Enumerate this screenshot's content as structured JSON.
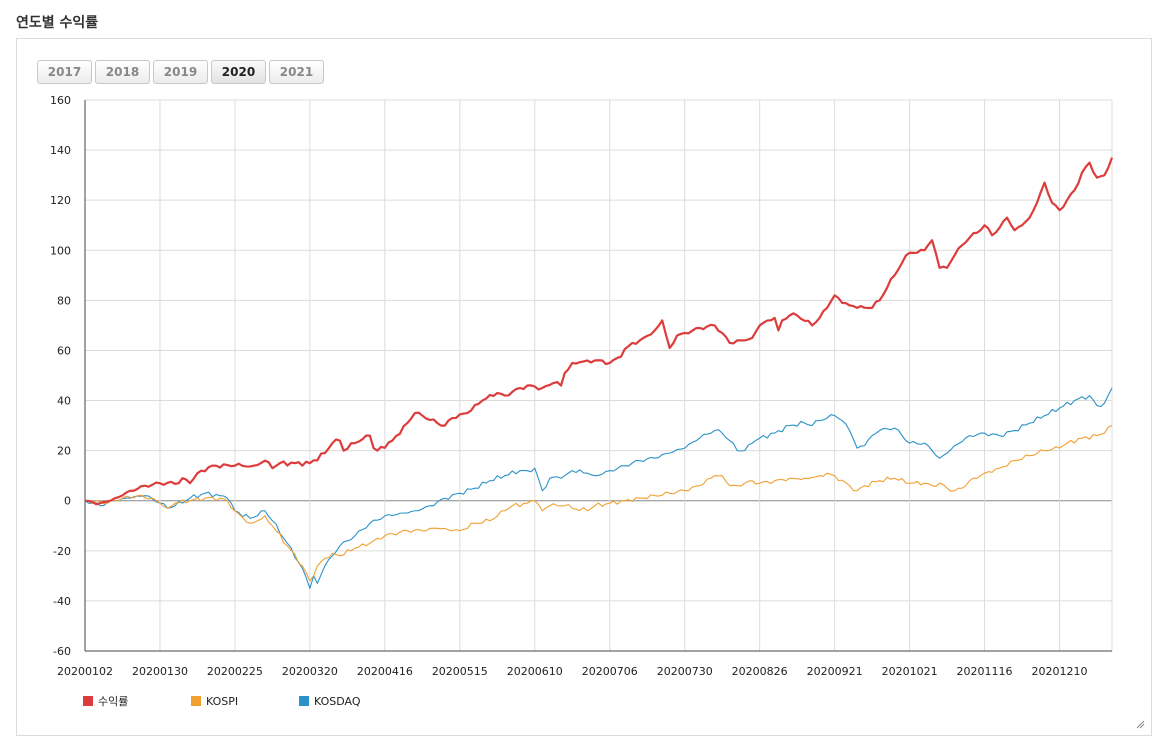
{
  "page": {
    "title": "연도별 수익률"
  },
  "year_tabs": [
    {
      "label": "2017",
      "active": false
    },
    {
      "label": "2018",
      "active": false
    },
    {
      "label": "2019",
      "active": false
    },
    {
      "label": "2020",
      "active": true
    },
    {
      "label": "2021",
      "active": false
    }
  ],
  "chart_data": {
    "type": "line",
    "title": "",
    "xlabel": "",
    "ylabel": "",
    "ylim": [
      -60,
      160
    ],
    "yticks": [
      -60,
      -40,
      -20,
      0,
      20,
      40,
      60,
      80,
      100,
      120,
      140,
      160
    ],
    "x_tick_labels": [
      "20200102",
      "20200130",
      "20200225",
      "20200320",
      "20200416",
      "20200515",
      "20200610",
      "20200706",
      "20200730",
      "20200826",
      "20200921",
      "20201021",
      "20201116",
      "20201210"
    ],
    "x_tick_index": [
      0,
      20,
      40,
      60,
      80,
      100,
      120,
      140,
      160,
      180,
      200,
      220,
      240,
      260
    ],
    "n_points": 275,
    "grid": true,
    "legend_position": "bottom-left",
    "series": [
      {
        "name": "수익률",
        "color": "#dd3c3c",
        "anchors": [
          [
            0,
            0
          ],
          [
            4,
            -1
          ],
          [
            8,
            1
          ],
          [
            12,
            4
          ],
          [
            16,
            6
          ],
          [
            20,
            7
          ],
          [
            25,
            7
          ],
          [
            26,
            9
          ],
          [
            28,
            7
          ],
          [
            30,
            11
          ],
          [
            34,
            14
          ],
          [
            40,
            14
          ],
          [
            45,
            14
          ],
          [
            48,
            16
          ],
          [
            50,
            13
          ],
          [
            52,
            15
          ],
          [
            56,
            15
          ],
          [
            60,
            15
          ],
          [
            64,
            19
          ],
          [
            66,
            23
          ],
          [
            68,
            24
          ],
          [
            69,
            20
          ],
          [
            72,
            23
          ],
          [
            76,
            26
          ],
          [
            77,
            21
          ],
          [
            78,
            20
          ],
          [
            82,
            24
          ],
          [
            86,
            31
          ],
          [
            88,
            35
          ],
          [
            90,
            34
          ],
          [
            94,
            31
          ],
          [
            96,
            30
          ],
          [
            98,
            33
          ],
          [
            102,
            35
          ],
          [
            106,
            40
          ],
          [
            110,
            43
          ],
          [
            112,
            42
          ],
          [
            116,
            45
          ],
          [
            118,
            46
          ],
          [
            122,
            45
          ],
          [
            125,
            47
          ],
          [
            127,
            46
          ],
          [
            128,
            51
          ],
          [
            130,
            55
          ],
          [
            134,
            56
          ],
          [
            138,
            56
          ],
          [
            140,
            55
          ],
          [
            142,
            57
          ],
          [
            146,
            63
          ],
          [
            148,
            64
          ],
          [
            152,
            68
          ],
          [
            154,
            72
          ],
          [
            156,
            61
          ],
          [
            158,
            66
          ],
          [
            160,
            67
          ],
          [
            164,
            69
          ],
          [
            168,
            70
          ],
          [
            170,
            67
          ],
          [
            172,
            63
          ],
          [
            176,
            64
          ],
          [
            178,
            65
          ],
          [
            180,
            70
          ],
          [
            184,
            73
          ],
          [
            185,
            68
          ],
          [
            186,
            72
          ],
          [
            188,
            74
          ],
          [
            190,
            74
          ],
          [
            194,
            70
          ],
          [
            196,
            73
          ],
          [
            198,
            77
          ],
          [
            200,
            82
          ],
          [
            202,
            79
          ],
          [
            204,
            78
          ],
          [
            206,
            77
          ],
          [
            210,
            77
          ],
          [
            212,
            80
          ],
          [
            214,
            85
          ],
          [
            216,
            90
          ],
          [
            218,
            95
          ],
          [
            220,
            99
          ],
          [
            222,
            99
          ],
          [
            224,
            100
          ],
          [
            226,
            104
          ],
          [
            228,
            93
          ],
          [
            230,
            93
          ],
          [
            232,
            98
          ],
          [
            234,
            102
          ],
          [
            236,
            105
          ],
          [
            238,
            107
          ],
          [
            240,
            110
          ],
          [
            242,
            106
          ],
          [
            244,
            109
          ],
          [
            246,
            113
          ],
          [
            248,
            108
          ],
          [
            250,
            110
          ],
          [
            252,
            113
          ],
          [
            254,
            119
          ],
          [
            256,
            127
          ],
          [
            258,
            119
          ],
          [
            260,
            116
          ],
          [
            262,
            120
          ],
          [
            264,
            124
          ],
          [
            266,
            131
          ],
          [
            268,
            135
          ],
          [
            270,
            129
          ],
          [
            272,
            130
          ],
          [
            274,
            137
          ]
        ]
      },
      {
        "name": "KOSPI",
        "color": "#f0a030",
        "anchors": [
          [
            0,
            0
          ],
          [
            6,
            -1
          ],
          [
            10,
            1
          ],
          [
            14,
            2
          ],
          [
            18,
            1
          ],
          [
            20,
            -1
          ],
          [
            22,
            -3
          ],
          [
            24,
            -1
          ],
          [
            28,
            0
          ],
          [
            32,
            1
          ],
          [
            36,
            1
          ],
          [
            38,
            0
          ],
          [
            40,
            -4
          ],
          [
            44,
            -9
          ],
          [
            46,
            -8
          ],
          [
            48,
            -6
          ],
          [
            50,
            -10
          ],
          [
            54,
            -18
          ],
          [
            58,
            -26
          ],
          [
            60,
            -32
          ],
          [
            62,
            -26
          ],
          [
            64,
            -23
          ],
          [
            66,
            -21
          ],
          [
            68,
            -22
          ],
          [
            72,
            -19
          ],
          [
            76,
            -17
          ],
          [
            80,
            -14
          ],
          [
            86,
            -12
          ],
          [
            90,
            -12
          ],
          [
            94,
            -11
          ],
          [
            98,
            -12
          ],
          [
            100,
            -12
          ],
          [
            104,
            -9
          ],
          [
            108,
            -8
          ],
          [
            112,
            -4
          ],
          [
            114,
            -2
          ],
          [
            118,
            -1
          ],
          [
            120,
            0
          ],
          [
            122,
            -4
          ],
          [
            124,
            -2
          ],
          [
            128,
            -2
          ],
          [
            130,
            -3
          ],
          [
            134,
            -4
          ],
          [
            136,
            -2
          ],
          [
            140,
            -1
          ],
          [
            144,
            0
          ],
          [
            148,
            1
          ],
          [
            152,
            2
          ],
          [
            156,
            3
          ],
          [
            160,
            4
          ],
          [
            164,
            6
          ],
          [
            168,
            10
          ],
          [
            170,
            10
          ],
          [
            172,
            6
          ],
          [
            174,
            6
          ],
          [
            176,
            7
          ],
          [
            178,
            8
          ],
          [
            180,
            7
          ],
          [
            184,
            8
          ],
          [
            188,
            9
          ],
          [
            192,
            9
          ],
          [
            196,
            10
          ],
          [
            198,
            11
          ],
          [
            200,
            10
          ],
          [
            204,
            6
          ],
          [
            206,
            4
          ],
          [
            208,
            6
          ],
          [
            212,
            8
          ],
          [
            216,
            9
          ],
          [
            220,
            7
          ],
          [
            224,
            7
          ],
          [
            226,
            6
          ],
          [
            228,
            7
          ],
          [
            230,
            5
          ],
          [
            232,
            4
          ],
          [
            234,
            5
          ],
          [
            236,
            8
          ],
          [
            240,
            11
          ],
          [
            244,
            13
          ],
          [
            248,
            16
          ],
          [
            252,
            18
          ],
          [
            256,
            20
          ],
          [
            260,
            21
          ],
          [
            262,
            23
          ],
          [
            266,
            25
          ],
          [
            270,
            26
          ],
          [
            272,
            27
          ],
          [
            274,
            30
          ]
        ]
      },
      {
        "name": "KOSDAQ",
        "color": "#2a92c8",
        "anchors": [
          [
            0,
            0
          ],
          [
            4,
            -2
          ],
          [
            8,
            0
          ],
          [
            12,
            1
          ],
          [
            16,
            2
          ],
          [
            20,
            -1
          ],
          [
            22,
            -3
          ],
          [
            24,
            -2
          ],
          [
            28,
            1
          ],
          [
            32,
            3
          ],
          [
            36,
            2
          ],
          [
            38,
            1
          ],
          [
            40,
            -4
          ],
          [
            44,
            -7
          ],
          [
            46,
            -6
          ],
          [
            48,
            -4
          ],
          [
            50,
            -8
          ],
          [
            54,
            -17
          ],
          [
            58,
            -27
          ],
          [
            60,
            -35
          ],
          [
            61,
            -30
          ],
          [
            62,
            -33
          ],
          [
            64,
            -26
          ],
          [
            66,
            -22
          ],
          [
            68,
            -18
          ],
          [
            70,
            -16
          ],
          [
            72,
            -14
          ],
          [
            76,
            -9
          ],
          [
            80,
            -6
          ],
          [
            84,
            -5
          ],
          [
            88,
            -4
          ],
          [
            92,
            -2
          ],
          [
            96,
            1
          ],
          [
            100,
            3
          ],
          [
            104,
            5
          ],
          [
            108,
            8
          ],
          [
            112,
            10
          ],
          [
            116,
            12
          ],
          [
            118,
            12
          ],
          [
            120,
            13
          ],
          [
            122,
            4
          ],
          [
            124,
            9
          ],
          [
            128,
            10
          ],
          [
            130,
            12
          ],
          [
            134,
            11
          ],
          [
            136,
            10
          ],
          [
            140,
            12
          ],
          [
            144,
            14
          ],
          [
            148,
            16
          ],
          [
            152,
            17
          ],
          [
            156,
            19
          ],
          [
            160,
            21
          ],
          [
            164,
            25
          ],
          [
            168,
            28
          ],
          [
            170,
            27
          ],
          [
            172,
            24
          ],
          [
            174,
            20
          ],
          [
            176,
            20
          ],
          [
            178,
            23
          ],
          [
            180,
            25
          ],
          [
            184,
            27
          ],
          [
            188,
            30
          ],
          [
            192,
            31
          ],
          [
            194,
            30
          ],
          [
            196,
            32
          ],
          [
            198,
            33
          ],
          [
            200,
            34
          ],
          [
            202,
            32
          ],
          [
            204,
            28
          ],
          [
            206,
            21
          ],
          [
            208,
            22
          ],
          [
            210,
            26
          ],
          [
            212,
            28
          ],
          [
            216,
            29
          ],
          [
            220,
            23
          ],
          [
            224,
            23
          ],
          [
            226,
            20
          ],
          [
            228,
            17
          ],
          [
            230,
            19
          ],
          [
            232,
            22
          ],
          [
            236,
            26
          ],
          [
            240,
            27
          ],
          [
            244,
            26
          ],
          [
            248,
            28
          ],
          [
            252,
            31
          ],
          [
            256,
            34
          ],
          [
            260,
            37
          ],
          [
            264,
            40
          ],
          [
            268,
            42
          ],
          [
            270,
            38
          ],
          [
            272,
            39
          ],
          [
            274,
            45
          ]
        ]
      }
    ]
  },
  "legend": [
    {
      "label": "수익률",
      "color": "#dd3c3c"
    },
    {
      "label": "KOSPI",
      "color": "#f0a030"
    },
    {
      "label": "KOSDAQ",
      "color": "#2a92c8"
    }
  ]
}
